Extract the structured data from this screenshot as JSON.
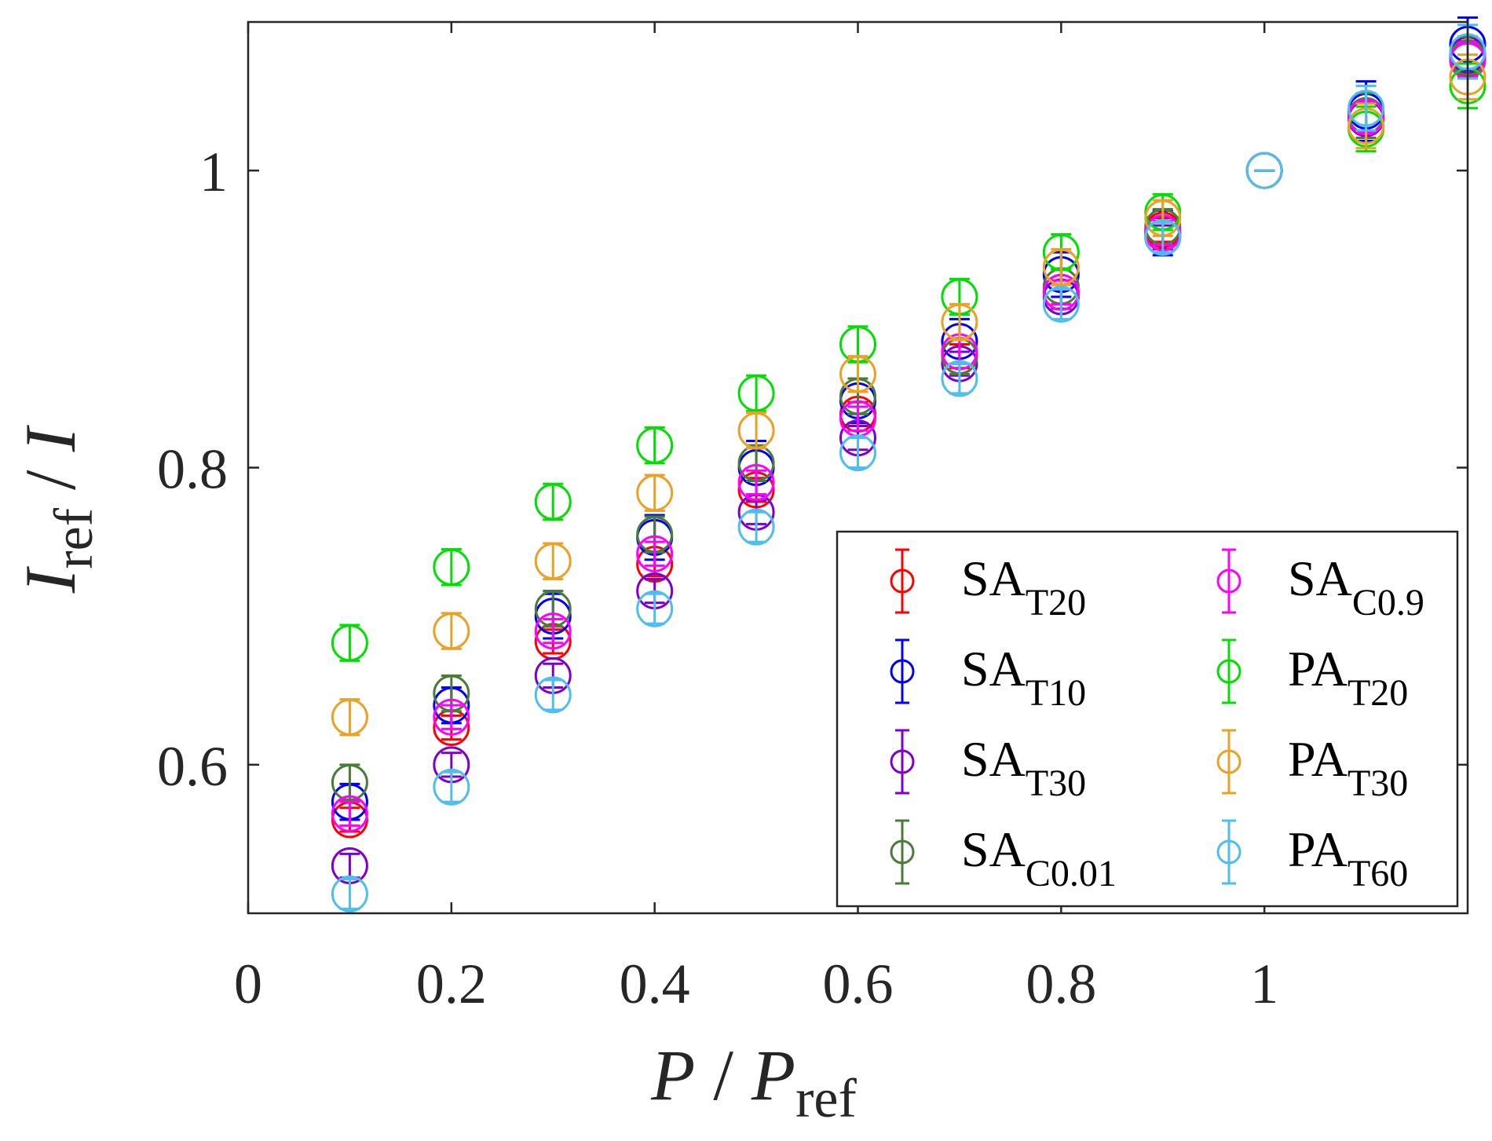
{
  "chart_data": {
    "type": "scatter",
    "title": "",
    "xlabel": {
      "main": "P",
      "sep": " / ",
      "main2": "P",
      "sub": "ref"
    },
    "ylabel": {
      "main": "I",
      "sub": "ref",
      "sep": " / ",
      "main2": "I"
    },
    "xlim": [
      0,
      1.2
    ],
    "ylim": [
      0.5,
      1.1
    ],
    "xticks": [
      0,
      0.2,
      0.4,
      0.6,
      0.8,
      1
    ],
    "xtick_labels": [
      "0",
      "0.2",
      "0.4",
      "0.6",
      "0.8",
      "1"
    ],
    "yticks": [
      0.6,
      0.8,
      1.0
    ],
    "ytick_labels": [
      "0.6",
      "0.8",
      "1"
    ],
    "grid": false,
    "legend_position": "bottom-right",
    "x": [
      0.1,
      0.2,
      0.3,
      0.4,
      0.5,
      0.6,
      0.7,
      0.8,
      0.9,
      1.0,
      1.1,
      1.2
    ],
    "series": [
      {
        "name": "SA",
        "sub": "T20",
        "color": "#ff0000",
        "values": [
          0.563,
          0.625,
          0.683,
          0.735,
          0.785,
          0.836,
          0.875,
          0.918,
          0.96,
          1.0,
          1.035,
          1.075
        ],
        "errors": [
          0.008,
          0.008,
          0.008,
          0.008,
          0.008,
          0.008,
          0.008,
          0.008,
          0.008,
          0.0,
          0.01,
          0.012
        ]
      },
      {
        "name": "SA",
        "sub": "T10",
        "color": "#0000ff",
        "values": [
          0.575,
          0.64,
          0.7,
          0.753,
          0.8,
          0.845,
          0.885,
          0.93,
          0.958,
          1.0,
          1.04,
          1.085
        ],
        "errors": [
          0.012,
          0.012,
          0.015,
          0.015,
          0.018,
          0.015,
          0.015,
          0.015,
          0.015,
          0.0,
          0.02,
          0.018
        ]
      },
      {
        "name": "SA",
        "sub": "T30",
        "color": "#7e00d0",
        "values": [
          0.532,
          0.6,
          0.66,
          0.717,
          0.77,
          0.82,
          0.87,
          0.915,
          0.955,
          1.0,
          1.035,
          1.078
        ],
        "errors": [
          0.008,
          0.008,
          0.008,
          0.008,
          0.008,
          0.008,
          0.008,
          0.008,
          0.008,
          0.0,
          0.01,
          0.012
        ]
      },
      {
        "name": "SA",
        "sub": "C0.01",
        "color": "#4a7c39",
        "values": [
          0.588,
          0.648,
          0.705,
          0.755,
          0.803,
          0.848,
          0.875,
          0.922,
          0.962,
          1.0,
          1.037,
          1.076
        ],
        "errors": [
          0.012,
          0.012,
          0.012,
          0.012,
          0.012,
          0.012,
          0.012,
          0.012,
          0.012,
          0.0,
          0.015,
          0.014
        ]
      },
      {
        "name": "SA",
        "sub": "C0.9",
        "color": "#ff00ff",
        "values": [
          0.567,
          0.632,
          0.69,
          0.742,
          0.79,
          0.833,
          0.878,
          0.918,
          0.958,
          1.0,
          1.036,
          1.074
        ],
        "errors": [
          0.008,
          0.008,
          0.008,
          0.008,
          0.008,
          0.008,
          0.008,
          0.008,
          0.008,
          0.0,
          0.01,
          0.012
        ]
      },
      {
        "name": "PA",
        "sub": "T20",
        "color": "#00e000",
        "values": [
          0.682,
          0.733,
          0.777,
          0.815,
          0.85,
          0.883,
          0.915,
          0.945,
          0.972,
          1.0,
          1.028,
          1.057
        ],
        "errors": [
          0.012,
          0.012,
          0.012,
          0.012,
          0.012,
          0.012,
          0.012,
          0.012,
          0.012,
          0.0,
          0.015,
          0.015
        ]
      },
      {
        "name": "PA",
        "sub": "T30",
        "color": "#eba124",
        "values": [
          0.632,
          0.69,
          0.737,
          0.783,
          0.825,
          0.863,
          0.898,
          0.935,
          0.968,
          1.0,
          1.03,
          1.063
        ],
        "errors": [
          0.012,
          0.012,
          0.012,
          0.012,
          0.012,
          0.012,
          0.012,
          0.012,
          0.012,
          0.0,
          0.015,
          0.015
        ]
      },
      {
        "name": "PA",
        "sub": "T60",
        "color": "#4dbeee",
        "values": [
          0.513,
          0.585,
          0.647,
          0.705,
          0.76,
          0.81,
          0.86,
          0.91,
          0.955,
          1.0,
          1.042,
          1.08
        ],
        "errors": [
          0.01,
          0.01,
          0.01,
          0.01,
          0.01,
          0.01,
          0.01,
          0.01,
          0.01,
          0.0,
          0.015,
          0.018
        ]
      }
    ]
  }
}
